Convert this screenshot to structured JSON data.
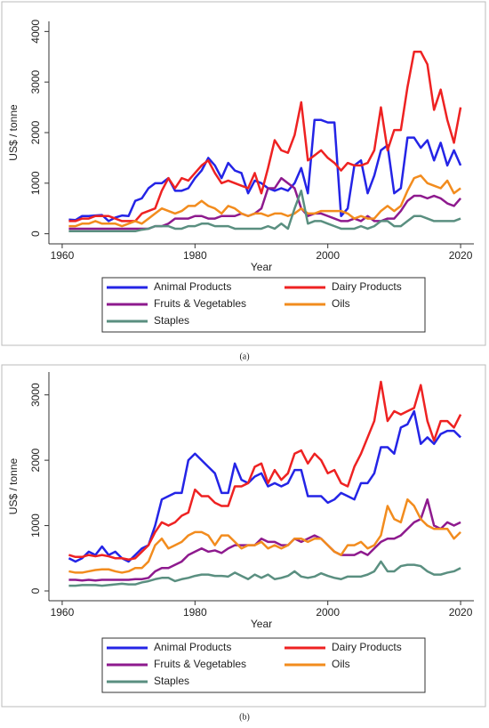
{
  "chart_data": [
    {
      "type": "line",
      "caption": "(a)",
      "x_label": "Year",
      "y_label": "US$ / tonne",
      "x": [
        1961,
        1962,
        1963,
        1964,
        1965,
        1966,
        1967,
        1968,
        1969,
        1970,
        1971,
        1972,
        1973,
        1974,
        1975,
        1976,
        1977,
        1978,
        1979,
        1980,
        1981,
        1982,
        1983,
        1984,
        1985,
        1986,
        1987,
        1988,
        1989,
        1990,
        1991,
        1992,
        1993,
        1994,
        1995,
        1996,
        1997,
        1998,
        1999,
        2000,
        2001,
        2002,
        2003,
        2004,
        2005,
        2006,
        2007,
        2008,
        2009,
        2010,
        2011,
        2012,
        2013,
        2014,
        2015,
        2016,
        2017,
        2018,
        2019,
        2020
      ],
      "xlim": [
        1958,
        2022
      ],
      "xticks": [
        1960,
        1980,
        2000,
        2020
      ],
      "ylim": [
        -200,
        4200
      ],
      "yticks": [
        0,
        1000,
        2000,
        3000,
        4000
      ],
      "legend": "bottom",
      "series": [
        {
          "name": "Animal Products",
          "color": "#2424e6",
          "values": [
            280,
            270,
            350,
            350,
            360,
            370,
            250,
            320,
            360,
            350,
            650,
            700,
            900,
            1000,
            1000,
            1100,
            850,
            850,
            900,
            1100,
            1250,
            1500,
            1350,
            1100,
            1400,
            1250,
            1200,
            800,
            1050,
            1000,
            900,
            850,
            900,
            850,
            1000,
            1300,
            800,
            2250,
            2250,
            2200,
            2200,
            350,
            500,
            1350,
            1450,
            800,
            1150,
            1650,
            1750,
            800,
            900,
            1900,
            1900,
            1700,
            1850,
            1450,
            1800,
            1350,
            1650,
            1350
          ]
        },
        {
          "name": "Dairy Products",
          "color": "#ee2222",
          "values": [
            250,
            250,
            300,
            300,
            350,
            350,
            350,
            300,
            250,
            250,
            250,
            400,
            450,
            500,
            850,
            1100,
            900,
            1100,
            1050,
            1200,
            1350,
            1450,
            1200,
            1000,
            1050,
            1000,
            950,
            900,
            1200,
            800,
            1300,
            1850,
            1650,
            1600,
            1950,
            2600,
            1450,
            1550,
            1650,
            1500,
            1400,
            1250,
            1400,
            1350,
            1350,
            1400,
            1650,
            2500,
            1650,
            2050,
            2050,
            2900,
            3600,
            3600,
            3350,
            2450,
            2850,
            2250,
            1800,
            2500
          ]
        },
        {
          "name": "Fruits & Vegetables",
          "color": "#8e1a8e",
          "values": [
            100,
            100,
            100,
            100,
            100,
            100,
            100,
            100,
            100,
            100,
            100,
            100,
            100,
            150,
            150,
            200,
            300,
            300,
            300,
            350,
            350,
            300,
            300,
            350,
            350,
            350,
            400,
            350,
            400,
            500,
            900,
            900,
            1100,
            1000,
            900,
            500,
            350,
            400,
            400,
            350,
            300,
            250,
            250,
            300,
            250,
            350,
            250,
            250,
            300,
            300,
            450,
            650,
            750,
            750,
            700,
            750,
            700,
            600,
            550,
            700
          ]
        },
        {
          "name": "Oils",
          "color": "#f28c1e",
          "values": [
            150,
            150,
            200,
            200,
            250,
            200,
            200,
            200,
            150,
            200,
            250,
            200,
            300,
            400,
            500,
            450,
            400,
            450,
            550,
            550,
            650,
            550,
            500,
            400,
            550,
            500,
            400,
            350,
            400,
            400,
            350,
            400,
            400,
            350,
            400,
            500,
            400,
            400,
            450,
            450,
            450,
            450,
            400,
            300,
            350,
            300,
            300,
            450,
            550,
            450,
            550,
            850,
            1100,
            1150,
            1000,
            950,
            900,
            1050,
            800,
            900
          ]
        },
        {
          "name": "Staples",
          "color": "#5a8f80",
          "values": [
            50,
            50,
            50,
            50,
            50,
            50,
            50,
            50,
            50,
            50,
            50,
            80,
            100,
            150,
            150,
            150,
            100,
            100,
            150,
            150,
            200,
            200,
            150,
            150,
            150,
            100,
            100,
            100,
            100,
            100,
            150,
            100,
            200,
            100,
            500,
            850,
            200,
            250,
            250,
            200,
            150,
            100,
            100,
            100,
            150,
            100,
            150,
            250,
            250,
            150,
            150,
            250,
            350,
            350,
            300,
            250,
            250,
            250,
            250,
            300
          ]
        }
      ]
    },
    {
      "type": "line",
      "caption": "(b)",
      "x_label": "Year",
      "y_label": "US$ / tonne",
      "x": [
        1961,
        1962,
        1963,
        1964,
        1965,
        1966,
        1967,
        1968,
        1969,
        1970,
        1971,
        1972,
        1973,
        1974,
        1975,
        1976,
        1977,
        1978,
        1979,
        1980,
        1981,
        1982,
        1983,
        1984,
        1985,
        1986,
        1987,
        1988,
        1989,
        1990,
        1991,
        1992,
        1993,
        1994,
        1995,
        1996,
        1997,
        1998,
        1999,
        2000,
        2001,
        2002,
        2003,
        2004,
        2005,
        2006,
        2007,
        2008,
        2009,
        2010,
        2011,
        2012,
        2013,
        2014,
        2015,
        2016,
        2017,
        2018,
        2019,
        2020
      ],
      "xlim": [
        1958,
        2022
      ],
      "xticks": [
        1960,
        1980,
        2000,
        2020
      ],
      "ylim": [
        -150,
        3350
      ],
      "yticks": [
        0,
        1000,
        2000,
        3000
      ],
      "legend": "bottom",
      "series": [
        {
          "name": "Animal Products",
          "color": "#2424e6",
          "values": [
            500,
            450,
            500,
            600,
            550,
            680,
            550,
            600,
            500,
            450,
            550,
            650,
            700,
            1000,
            1400,
            1450,
            1500,
            1500,
            2000,
            2100,
            2000,
            1900,
            1800,
            1500,
            1500,
            1950,
            1700,
            1650,
            1750,
            1800,
            1600,
            1650,
            1600,
            1650,
            1850,
            1850,
            1450,
            1450,
            1450,
            1350,
            1400,
            1500,
            1450,
            1400,
            1650,
            1650,
            1800,
            2200,
            2200,
            2100,
            2500,
            2550,
            2750,
            2250,
            2350,
            2250,
            2400,
            2450,
            2450,
            2350
          ]
        },
        {
          "name": "Dairy Products",
          "color": "#ee2222",
          "values": [
            550,
            520,
            520,
            550,
            530,
            550,
            530,
            500,
            500,
            480,
            500,
            600,
            700,
            900,
            1050,
            1000,
            1050,
            1150,
            1200,
            1550,
            1450,
            1450,
            1350,
            1300,
            1300,
            1600,
            1600,
            1650,
            1900,
            1950,
            1650,
            1850,
            1700,
            1800,
            2100,
            2150,
            1950,
            2100,
            2000,
            1800,
            1850,
            1650,
            1600,
            1900,
            2100,
            2350,
            2600,
            3200,
            2600,
            2750,
            2700,
            2750,
            2800,
            3150,
            2600,
            2300,
            2600,
            2600,
            2500,
            2700
          ]
        },
        {
          "name": "Fruits & Vegetables",
          "color": "#8e1a8e",
          "values": [
            170,
            170,
            160,
            170,
            160,
            170,
            170,
            170,
            170,
            170,
            180,
            180,
            200,
            300,
            350,
            350,
            400,
            450,
            550,
            600,
            650,
            600,
            620,
            580,
            650,
            700,
            700,
            700,
            700,
            800,
            750,
            750,
            700,
            700,
            800,
            750,
            800,
            850,
            800,
            700,
            600,
            550,
            550,
            550,
            600,
            550,
            650,
            750,
            800,
            800,
            850,
            950,
            1050,
            1100,
            1400,
            1000,
            950,
            1050,
            1000,
            1050
          ]
        },
        {
          "name": "Oils",
          "color": "#f28c1e",
          "values": [
            300,
            280,
            280,
            300,
            320,
            330,
            330,
            300,
            280,
            300,
            350,
            350,
            450,
            700,
            800,
            650,
            700,
            750,
            850,
            900,
            900,
            850,
            700,
            850,
            850,
            750,
            650,
            700,
            700,
            750,
            650,
            700,
            650,
            700,
            800,
            800,
            750,
            800,
            800,
            700,
            600,
            550,
            700,
            700,
            750,
            650,
            700,
            850,
            1300,
            1100,
            1050,
            1400,
            1300,
            1100,
            1000,
            950,
            950,
            950,
            800,
            900
          ]
        },
        {
          "name": "Staples",
          "color": "#5a8f80",
          "values": [
            80,
            80,
            90,
            90,
            90,
            80,
            90,
            100,
            110,
            100,
            100,
            130,
            150,
            180,
            200,
            200,
            150,
            180,
            200,
            230,
            250,
            250,
            230,
            230,
            220,
            280,
            230,
            180,
            250,
            200,
            250,
            180,
            200,
            230,
            300,
            220,
            200,
            220,
            270,
            230,
            200,
            180,
            220,
            220,
            220,
            250,
            300,
            450,
            300,
            300,
            380,
            400,
            400,
            380,
            300,
            250,
            250,
            280,
            300,
            350
          ]
        }
      ]
    }
  ]
}
